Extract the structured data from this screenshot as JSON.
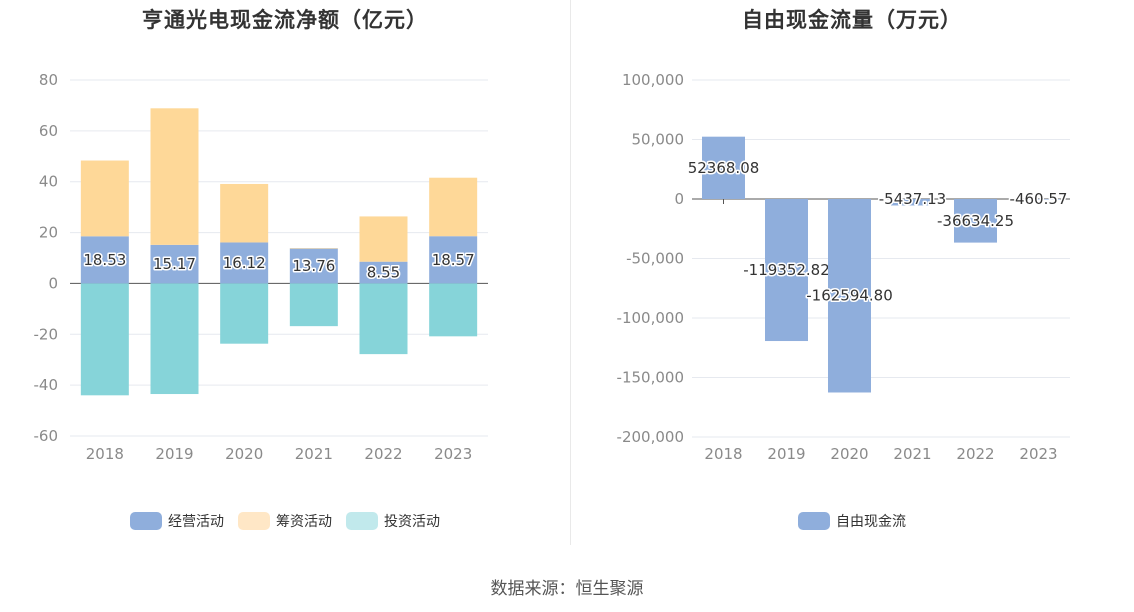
{
  "colors": {
    "operating": "#8faedc",
    "financing": "#fed898",
    "investing": "#86d4d9",
    "free_cash_flow": "#8faedc",
    "legend_financing": "#ffe7c6",
    "legend_investing": "#c1e9ec",
    "grid": "#e6e9ef",
    "axis_text": "#8a8a8a",
    "label_text": "#333333"
  },
  "source": "数据来源：恒生聚源",
  "chart_data": [
    {
      "type": "bar",
      "stacked": true,
      "title": "亨通光电现金流净额（亿元）",
      "categories": [
        "2018",
        "2019",
        "2020",
        "2021",
        "2022",
        "2023"
      ],
      "ylim": [
        -60,
        80
      ],
      "yticks": [
        80,
        60,
        40,
        20,
        0,
        -20,
        -40,
        -60
      ],
      "ytick_labels": [
        "80",
        "60",
        "40",
        "20",
        "0",
        "-20",
        "-40",
        "-60"
      ],
      "series": [
        {
          "name": "经营活动",
          "values": [
            18.53,
            15.17,
            16.12,
            13.76,
            8.55,
            18.57
          ],
          "labels": [
            "18.53",
            "15.17",
            "16.12",
            "13.76",
            "8.55",
            "18.57"
          ]
        },
        {
          "name": "筹资活动",
          "values": [
            29.8,
            53.7,
            23.0,
            0.1,
            17.8,
            23.0
          ]
        },
        {
          "name": "投资活动",
          "values": [
            -44.0,
            -43.5,
            -23.7,
            -16.8,
            -27.8,
            -20.8
          ]
        }
      ],
      "legend_position": "bottom",
      "grid": true
    },
    {
      "type": "bar",
      "title": "自由现金流量（万元）",
      "categories": [
        "2018",
        "2019",
        "2020",
        "2021",
        "2022",
        "2023"
      ],
      "ylim": [
        -200000,
        100000
      ],
      "yticks": [
        100000,
        50000,
        0,
        -50000,
        -100000,
        -150000,
        -200000
      ],
      "ytick_labels": [
        "100,000",
        "50,000",
        "0",
        "-50,000",
        "-100,000",
        "-150,000",
        "-200,000"
      ],
      "series": [
        {
          "name": "自由现金流",
          "values": [
            52368.08,
            -119352.82,
            -162594.8,
            -5437.13,
            -36634.25,
            -460.57
          ],
          "labels": [
            "52368.08",
            "-119352.82",
            "-162594.80",
            "-5437.13",
            "-36634.25",
            "-460.57"
          ]
        }
      ],
      "legend_position": "bottom",
      "grid": true
    }
  ]
}
